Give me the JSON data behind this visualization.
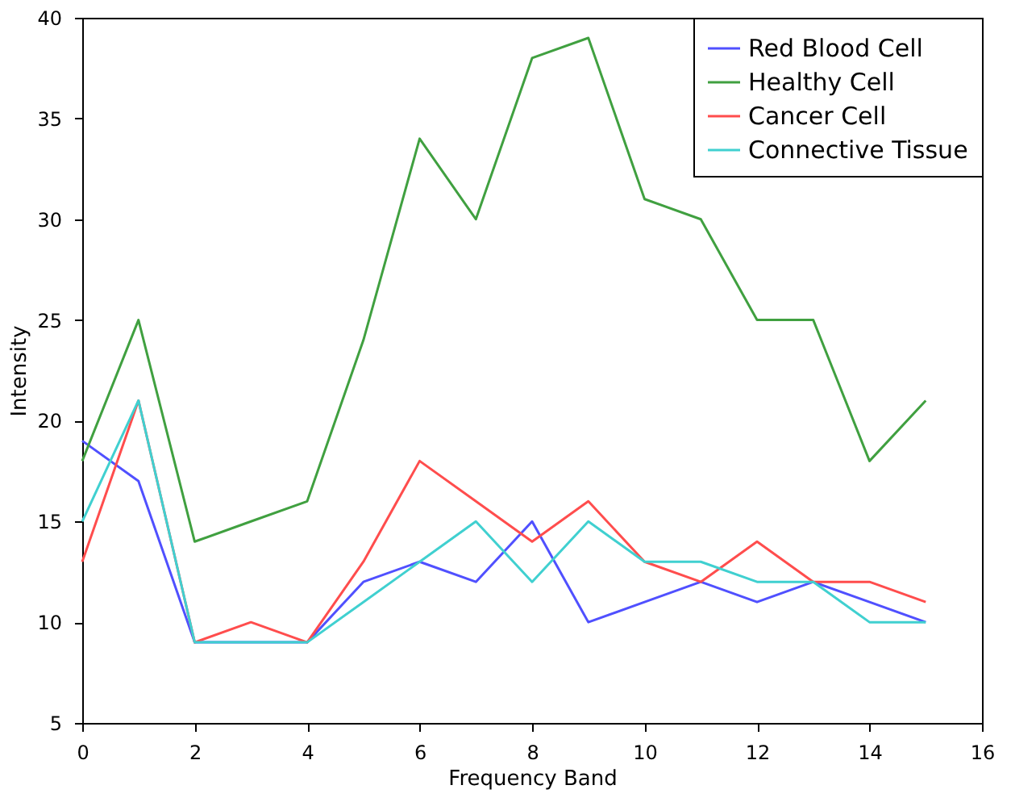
{
  "chart_data": {
    "type": "line",
    "xlabel": "Frequency Band",
    "ylabel": "Intensity",
    "x": [
      0,
      1,
      2,
      3,
      4,
      5,
      6,
      7,
      8,
      9,
      10,
      11,
      12,
      13,
      14,
      15
    ],
    "series": [
      {
        "name": "Red Blood Cell",
        "color": "#5050ff",
        "values": [
          19,
          17,
          9,
          9,
          9,
          12,
          13,
          12,
          15,
          10,
          11,
          12,
          11,
          12,
          11,
          10
        ]
      },
      {
        "name": "Healthy Cell",
        "color": "#40a040",
        "values": [
          18,
          25,
          14,
          15,
          16,
          24,
          34,
          30,
          38,
          39,
          31,
          30,
          25,
          25,
          18,
          21
        ]
      },
      {
        "name": "Cancer Cell",
        "color": "#ff4d4d",
        "values": [
          13,
          21,
          9,
          10,
          9,
          13,
          18,
          16,
          14,
          16,
          13,
          12,
          14,
          12,
          12,
          11
        ]
      },
      {
        "name": "Connective Tissue",
        "color": "#40d0d0",
        "values": [
          15,
          21,
          9,
          9,
          9,
          11,
          13,
          15,
          12,
          15,
          13,
          13,
          12,
          12,
          10,
          10
        ]
      }
    ],
    "xlim": [
      0,
      16
    ],
    "xticks": [
      0,
      2,
      4,
      6,
      8,
      10,
      12,
      14,
      16
    ],
    "ylim": [
      5,
      40
    ],
    "yticks": [
      5,
      10,
      15,
      20,
      25,
      30,
      35,
      40
    ],
    "grid": false,
    "legend": "top right",
    "marker": "none",
    "line_style": "solid"
  }
}
